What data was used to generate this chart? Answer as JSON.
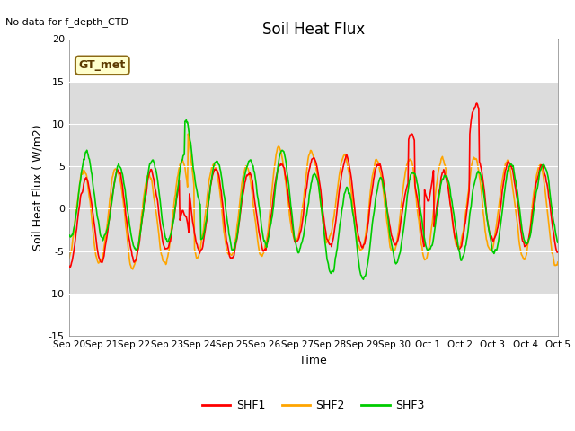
{
  "title": "Soil Heat Flux",
  "subtitle": "No data for f_depth_CTD",
  "ylabel": "Soil Heat Flux ( W/m2)",
  "xlabel": "Time",
  "ylim": [
    -15,
    20
  ],
  "shaded_region": [
    -10,
    15
  ],
  "color_shf1": "#FF0000",
  "color_shf2": "#FFA500",
  "color_shf3": "#00CC00",
  "annotation_text": "GT_met",
  "background_color": "#DCDCDC",
  "legend_labels": [
    "SHF1",
    "SHF2",
    "SHF3"
  ],
  "xtick_labels": [
    "Sep 20",
    "Sep 21",
    "Sep 22",
    "Sep 23",
    "Sep 24",
    "Sep 25",
    "Sep 26",
    "Sep 27",
    "Sep 28",
    "Sep 29",
    "Sep 30",
    "Oct 1",
    "Oct 2",
    "Oct 3",
    "Oct 4",
    "Oct 5"
  ],
  "linewidth": 1.2
}
